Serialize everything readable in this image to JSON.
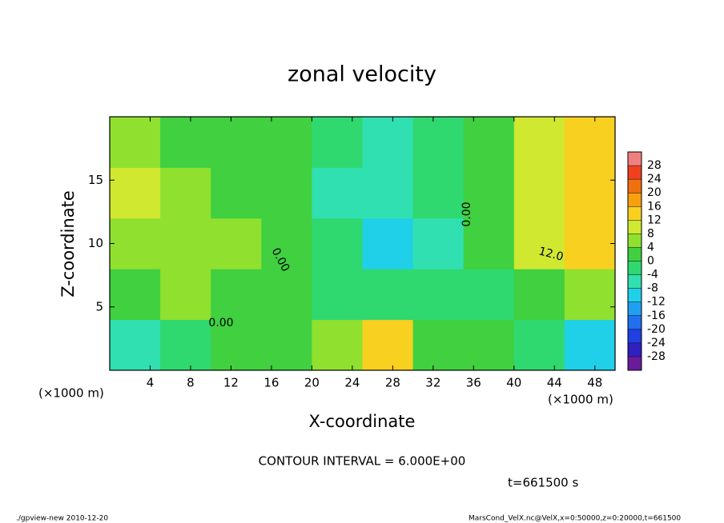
{
  "chart_data": {
    "type": "heatmap",
    "title": "zonal velocity",
    "x_label": "X-coordinate",
    "y_label": "Z-coordinate",
    "x_unit": "(×1000 m)",
    "x_unit2": "(×1000 m)",
    "xlim": [
      0,
      50
    ],
    "xticks": [
      4,
      8,
      12,
      16,
      20,
      24,
      28,
      32,
      36,
      40,
      44,
      48
    ],
    "ylim": [
      0,
      20
    ],
    "yticks": [
      5,
      10,
      15
    ],
    "x_edges": [
      0,
      5,
      10,
      15,
      20,
      25,
      30,
      35,
      40,
      45,
      50
    ],
    "y_edges": [
      0,
      4,
      8,
      12,
      16,
      20
    ],
    "z": [
      [
        -8,
        -2,
        0,
        1,
        5,
        14,
        2,
        2,
        -4,
        -10
      ],
      [
        2,
        6,
        3,
        1,
        -1,
        -3,
        -1,
        -1,
        3,
        4
      ],
      [
        5,
        4,
        4,
        1,
        -4,
        -11,
        -5,
        1,
        8,
        12
      ],
      [
        8,
        4,
        3,
        1,
        -5,
        -8,
        -4,
        2,
        10,
        14
      ],
      [
        6,
        3,
        2,
        0,
        -3,
        -5,
        -3,
        3,
        8,
        12
      ]
    ],
    "clim": [
      -32,
      32
    ],
    "cticks": [
      28,
      24,
      20,
      16,
      12,
      8,
      4,
      0,
      -4,
      -8,
      -12,
      -16,
      -20,
      -24,
      -28
    ],
    "colors": [
      "#6a1b9a",
      "#3020c0",
      "#2040e0",
      "#2070f0",
      "#20a0f0",
      "#20d0e8",
      "#30e0b0",
      "#30d870",
      "#40d040",
      "#90e030",
      "#d0e830",
      "#f8d020",
      "#f8a010",
      "#f07010",
      "#f04020",
      "#f08080"
    ],
    "annotations": [
      "0.00",
      "0.00",
      "0.00",
      "12.0"
    ],
    "contour_interval": "CONTOUR INTERVAL = 6.000E+00",
    "time": "t=661500 s",
    "footer_left": "./gpview-new  2010-12-20",
    "footer_right": "MarsCond_VelX.nc@VelX,x=0:50000,z=0:20000,t=661500"
  }
}
